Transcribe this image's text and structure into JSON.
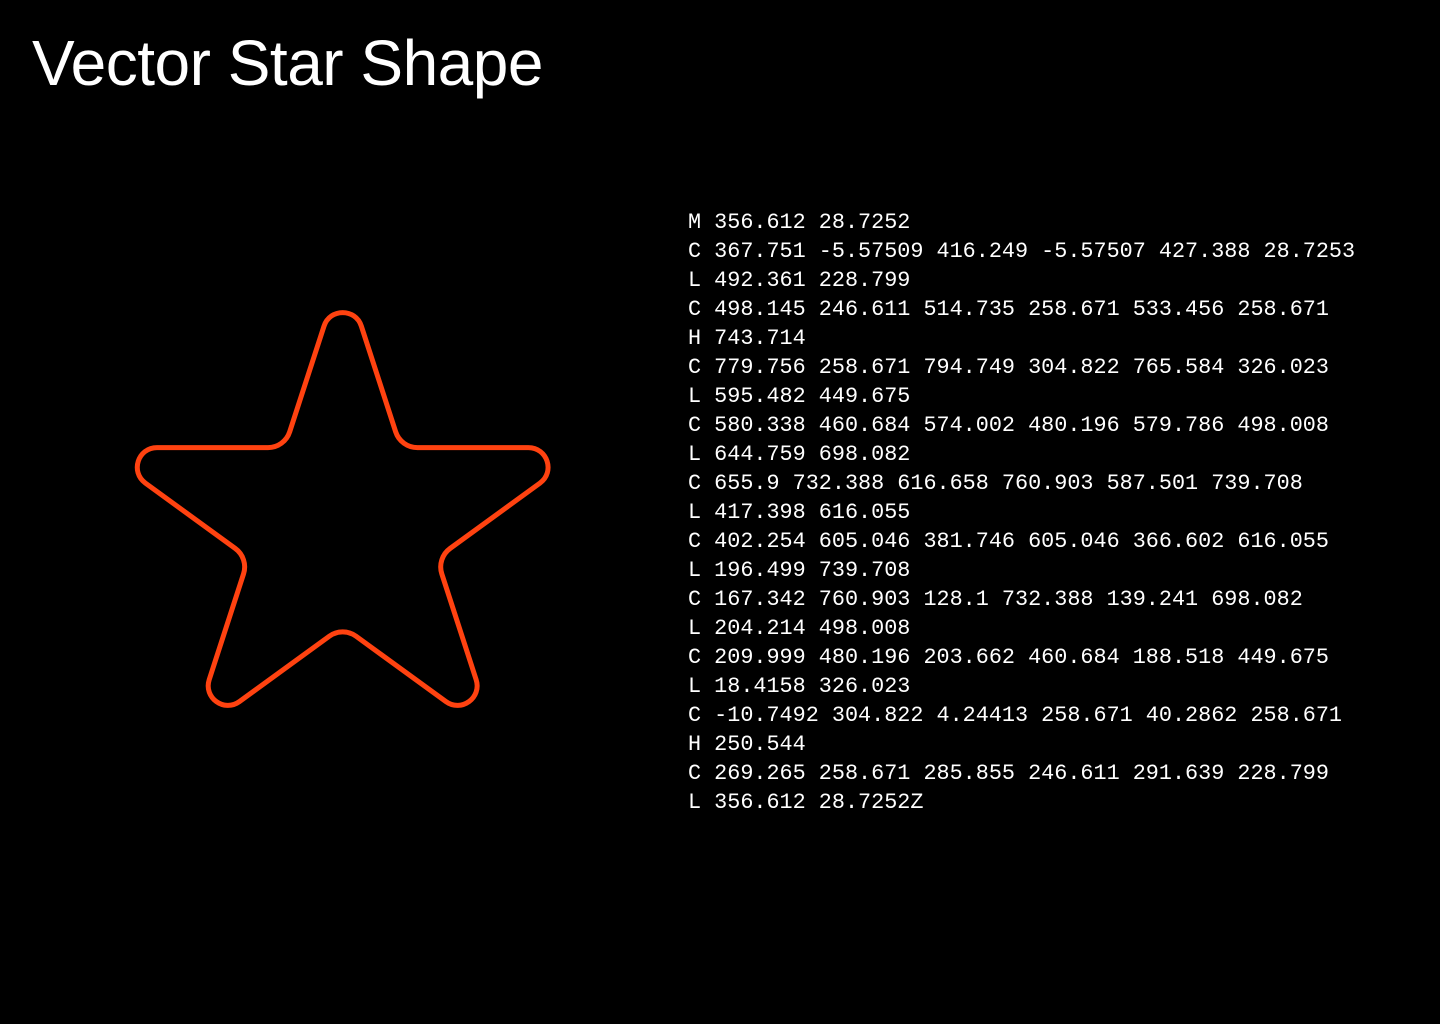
{
  "title": "Vector Star Shape",
  "path_lines": [
    "M 356.612 28.7252",
    "C 367.751 -5.57509 416.249 -5.57507 427.388 28.7253",
    "L 492.361 228.799",
    "C 498.145 246.611 514.735 258.671 533.456 258.671",
    "H 743.714",
    "C 779.756 258.671 794.749 304.822 765.584 326.023",
    "L 595.482 449.675",
    "C 580.338 460.684 574.002 480.196 579.786 498.008",
    "L 644.759 698.082",
    "C 655.9 732.388 616.658 760.903 587.501 739.708",
    "L 417.398 616.055",
    "C 402.254 605.046 381.746 605.046 366.602 616.055",
    "L 196.499 739.708",
    "C 167.342 760.903 128.1 732.388 139.241 698.082",
    "L 204.214 498.008",
    "C 209.999 480.196 203.662 460.684 188.518 449.675",
    "L 18.4158 326.023",
    "C -10.7492 304.822 4.24413 258.671 40.2862 258.671",
    "H 250.544",
    "C 269.265 258.671 285.855 246.611 291.639 228.799",
    "L 356.612 28.7252Z"
  ]
}
